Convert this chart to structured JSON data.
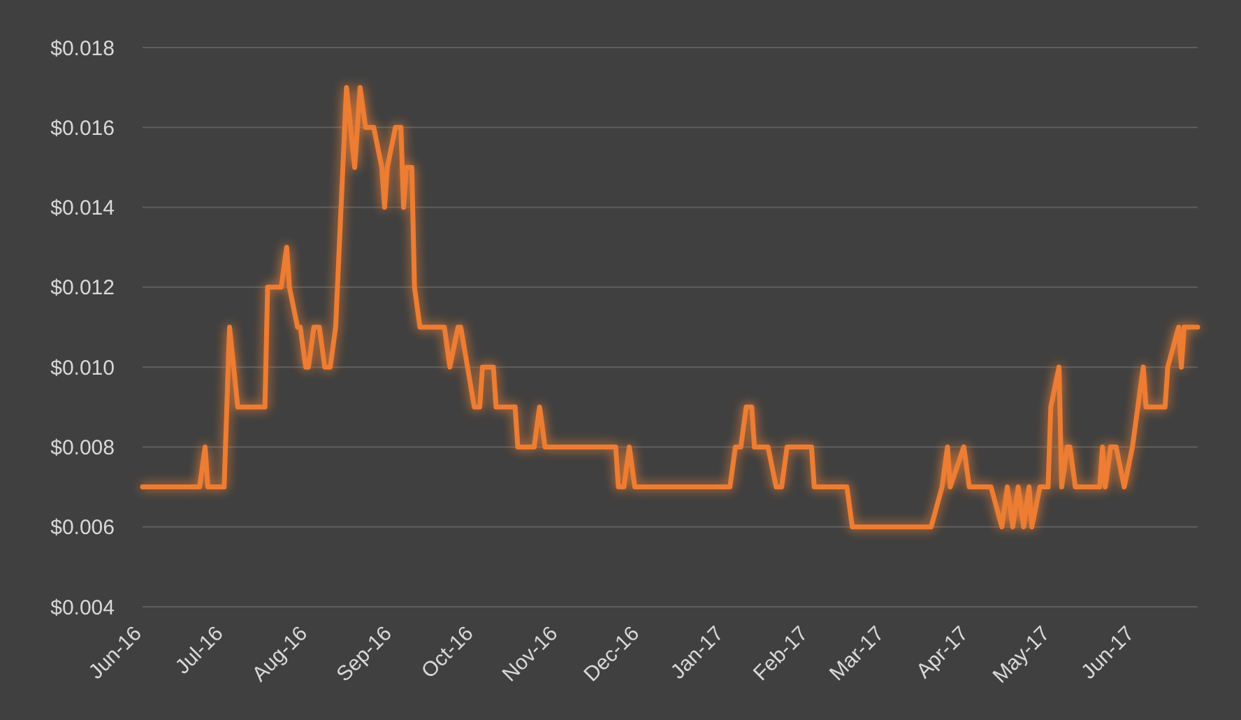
{
  "chart_data": {
    "type": "line",
    "x": [
      "2016-06-01",
      "2016-06-22",
      "2016-06-24",
      "2016-06-25",
      "2016-07-01",
      "2016-07-03",
      "2016-07-06",
      "2016-07-16",
      "2016-07-17",
      "2016-07-22",
      "2016-07-24",
      "2016-07-25",
      "2016-07-28",
      "2016-07-29",
      "2016-07-31",
      "2016-08-01",
      "2016-08-03",
      "2016-08-05",
      "2016-08-07",
      "2016-08-09",
      "2016-08-11",
      "2016-08-15",
      "2016-08-18",
      "2016-08-20",
      "2016-08-22",
      "2016-08-25",
      "2016-08-28",
      "2016-08-29",
      "2016-08-30",
      "2016-09-02",
      "2016-09-04",
      "2016-09-05",
      "2016-09-06",
      "2016-09-08",
      "2016-09-09",
      "2016-09-11",
      "2016-09-20",
      "2016-09-22",
      "2016-09-25",
      "2016-09-26",
      "2016-10-01",
      "2016-10-03",
      "2016-10-04",
      "2016-10-08",
      "2016-10-09",
      "2016-10-16",
      "2016-10-17",
      "2016-10-23",
      "2016-10-25",
      "2016-10-27",
      "2016-11-22",
      "2016-11-23",
      "2016-11-25",
      "2016-11-27",
      "2016-11-29",
      "2017-01-03",
      "2017-01-05",
      "2017-01-07",
      "2017-01-09",
      "2017-01-11",
      "2017-01-12",
      "2017-01-17",
      "2017-01-20",
      "2017-01-22",
      "2017-01-24",
      "2017-02-02",
      "2017-02-03",
      "2017-02-15",
      "2017-02-17",
      "2017-03-18",
      "2017-03-22",
      "2017-03-24",
      "2017-03-25",
      "2017-03-30",
      "2017-04-01",
      "2017-04-09",
      "2017-04-13",
      "2017-04-15",
      "2017-04-17",
      "2017-04-19",
      "2017-04-21",
      "2017-04-23",
      "2017-04-24",
      "2017-04-27",
      "2017-04-30",
      "2017-05-01",
      "2017-05-04",
      "2017-05-05",
      "2017-05-07",
      "2017-05-08",
      "2017-05-10",
      "2017-05-19",
      "2017-05-20",
      "2017-05-21",
      "2017-05-23",
      "2017-05-25",
      "2017-05-28",
      "2017-05-31",
      "2017-06-04",
      "2017-06-05",
      "2017-06-12",
      "2017-06-13",
      "2017-06-17",
      "2017-06-18",
      "2017-06-19",
      "2017-06-24"
    ],
    "series": [
      {
        "color": "#ed7d31",
        "values": [
          0.007,
          0.007,
          0.008,
          0.007,
          0.007,
          0.011,
          0.009,
          0.009,
          0.012,
          0.012,
          0.013,
          0.012,
          0.011,
          0.011,
          0.01,
          0.01,
          0.011,
          0.011,
          0.01,
          0.01,
          0.011,
          0.017,
          0.015,
          0.017,
          0.016,
          0.016,
          0.015,
          0.014,
          0.015,
          0.016,
          0.016,
          0.014,
          0.015,
          0.015,
          0.012,
          0.011,
          0.011,
          0.01,
          0.011,
          0.011,
          0.009,
          0.009,
          0.01,
          0.01,
          0.009,
          0.009,
          0.008,
          0.008,
          0.009,
          0.008,
          0.008,
          0.007,
          0.007,
          0.008,
          0.007,
          0.007,
          0.008,
          0.008,
          0.009,
          0.009,
          0.008,
          0.008,
          0.007,
          0.007,
          0.008,
          0.008,
          0.007,
          0.007,
          0.006,
          0.006,
          0.007,
          0.008,
          0.007,
          0.008,
          0.007,
          0.007,
          0.006,
          0.007,
          0.006,
          0.007,
          0.006,
          0.007,
          0.006,
          0.007,
          0.007,
          0.009,
          0.01,
          0.007,
          0.008,
          0.008,
          0.007,
          0.007,
          0.008,
          0.007,
          0.008,
          0.008,
          0.007,
          0.008,
          0.01,
          0.009,
          0.009,
          0.01,
          0.011,
          0.01,
          0.011,
          0.011
        ]
      }
    ],
    "xlim": [
      "2016-06-01",
      "2017-06-24"
    ],
    "xticks": [
      {
        "value": "2016-06-01",
        "label": "Jun-16"
      },
      {
        "value": "2016-07-01",
        "label": "Jul-16"
      },
      {
        "value": "2016-08-01",
        "label": "Aug-16"
      },
      {
        "value": "2016-09-01",
        "label": "Sep-16"
      },
      {
        "value": "2016-10-01",
        "label": "Oct-16"
      },
      {
        "value": "2016-11-01",
        "label": "Nov-16"
      },
      {
        "value": "2016-12-01",
        "label": "Dec-16"
      },
      {
        "value": "2017-01-01",
        "label": "Jan-17"
      },
      {
        "value": "2017-02-01",
        "label": "Feb-17"
      },
      {
        "value": "2017-03-01",
        "label": "Mar-17"
      },
      {
        "value": "2017-04-01",
        "label": "Apr-17"
      },
      {
        "value": "2017-05-01",
        "label": "May-17"
      },
      {
        "value": "2017-06-01",
        "label": "Jun-17"
      }
    ],
    "ylim": [
      0.004,
      0.018
    ],
    "yticks": [
      {
        "value": 0.004,
        "label": "$0.004"
      },
      {
        "value": 0.006,
        "label": "$0.006"
      },
      {
        "value": 0.008,
        "label": "$0.008"
      },
      {
        "value": 0.01,
        "label": "$0.010"
      },
      {
        "value": 0.012,
        "label": "$0.012"
      },
      {
        "value": 0.014,
        "label": "$0.014"
      },
      {
        "value": 0.016,
        "label": "$0.016"
      },
      {
        "value": 0.018,
        "label": "$0.018"
      }
    ],
    "grid": "y",
    "marker": "none",
    "line_style": "solid"
  }
}
